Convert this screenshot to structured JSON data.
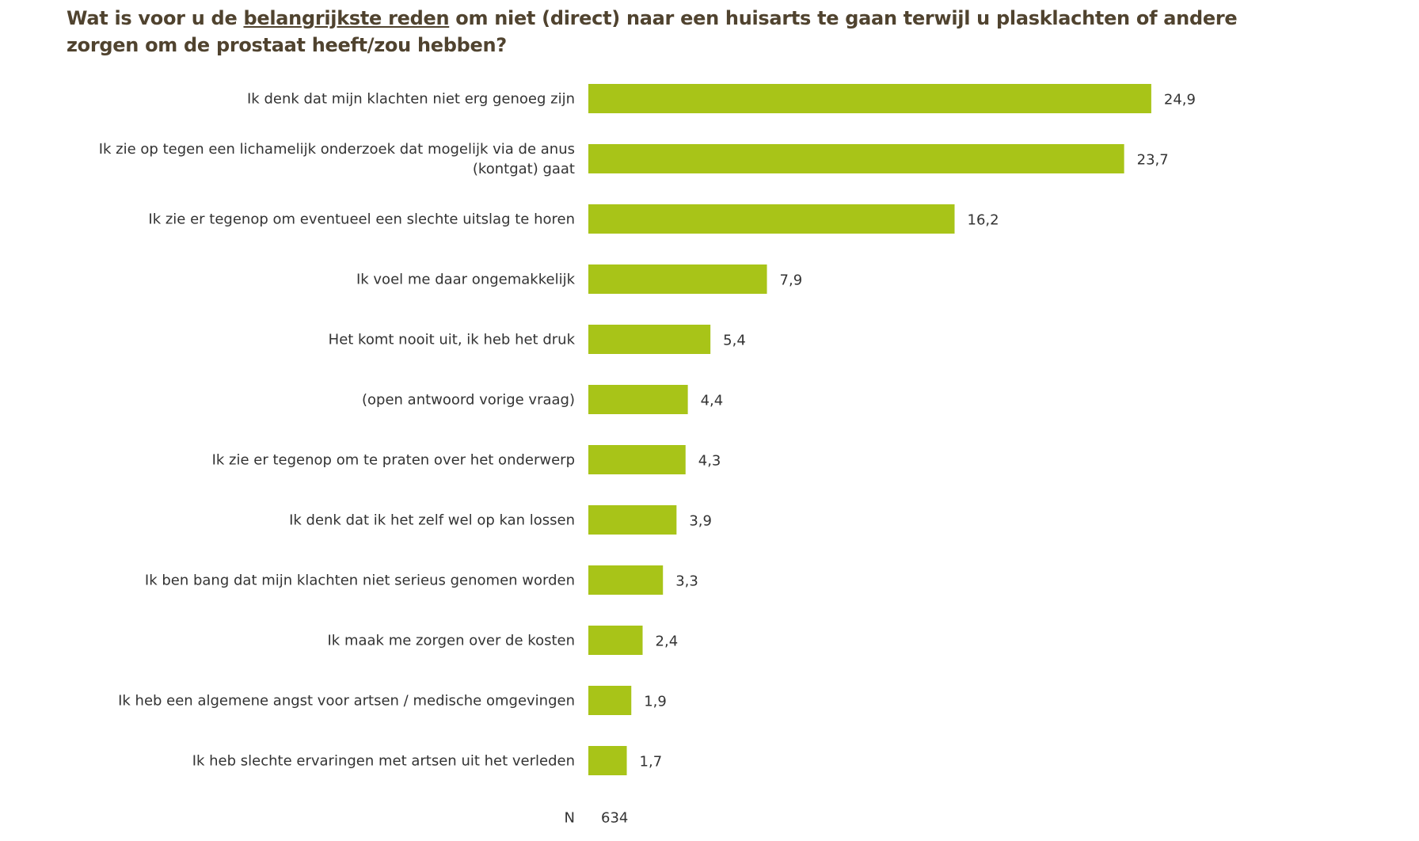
{
  "title": {
    "before": "Wat is voor u de ",
    "underlined": "belangrijkste reden",
    "after": " om niet (direct) naar een huisarts te gaan terwijl u plasklachten of andere zorgen om de prostaat heeft/zou hebben?"
  },
  "chart_data": {
    "type": "bar",
    "orientation": "horizontal",
    "categories": [
      "Ik denk dat mijn klachten niet erg genoeg zijn",
      "Ik zie op tegen een lichamelijk onderzoek dat mogelijk via de anus\n(kontgat) gaat",
      "Ik zie er tegenop om eventueel een slechte uitslag te horen",
      "Ik voel me daar ongemakkelijk",
      "Het komt nooit uit, ik heb het druk",
      "(open antwoord vorige vraag)",
      "Ik zie er tegenop om te praten over het onderwerp",
      "Ik denk dat ik het zelf wel op kan lossen",
      "Ik ben bang dat mijn klachten niet serieus genomen worden",
      "Ik maak me zorgen over de kosten",
      "Ik heb een algemene angst voor artsen / medische omgevingen",
      "Ik heb slechte ervaringen met artsen uit het verleden"
    ],
    "values": [
      24.9,
      23.7,
      16.2,
      7.9,
      5.4,
      4.4,
      4.3,
      3.9,
      3.3,
      2.4,
      1.9,
      1.7
    ],
    "value_labels": [
      "24,9",
      "23,7",
      "16,2",
      "7,9",
      "5,4",
      "4,4",
      "4,3",
      "3,9",
      "3,3",
      "2,4",
      "1,9",
      "1,7"
    ],
    "bar_color": "#a8c418",
    "grid": false,
    "n_label": "N",
    "n_value": "634"
  }
}
